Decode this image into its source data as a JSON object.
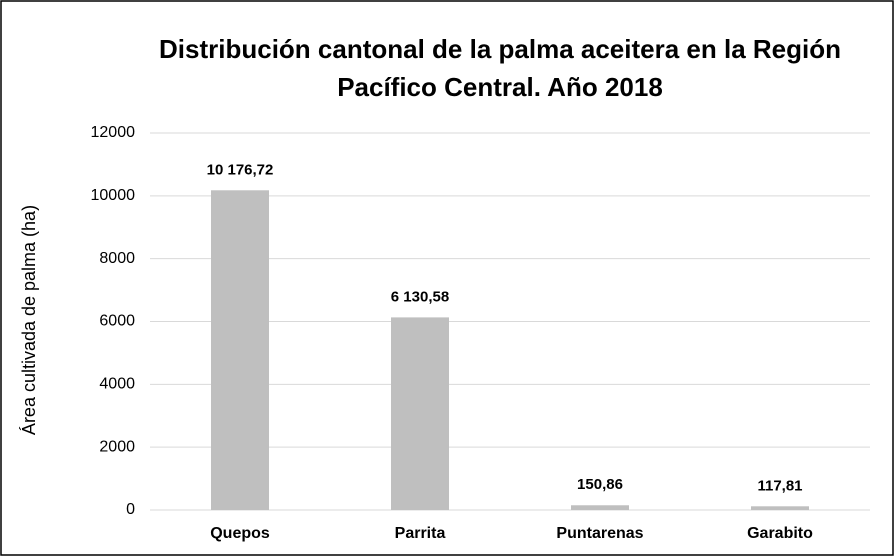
{
  "chart_data": {
    "type": "bar",
    "title": "Distribución cantonal de la palma aceitera en la Región Pacífico Central. Año 2018",
    "y_label": "Área cultivada de palma (ha)",
    "categories": [
      "Quepos",
      "Parrita",
      "Puntarenas",
      "Garabito"
    ],
    "values": [
      10176.72,
      6130.58,
      150.86,
      117.81
    ],
    "value_labels": [
      "10 176,72",
      "6 130,58",
      "150,86",
      "117,81"
    ],
    "color": "#bfbfbf",
    "ylim": [
      0,
      12000
    ],
    "yticks": [
      0,
      2000,
      4000,
      6000,
      8000,
      10000,
      12000
    ],
    "grid": true
  }
}
